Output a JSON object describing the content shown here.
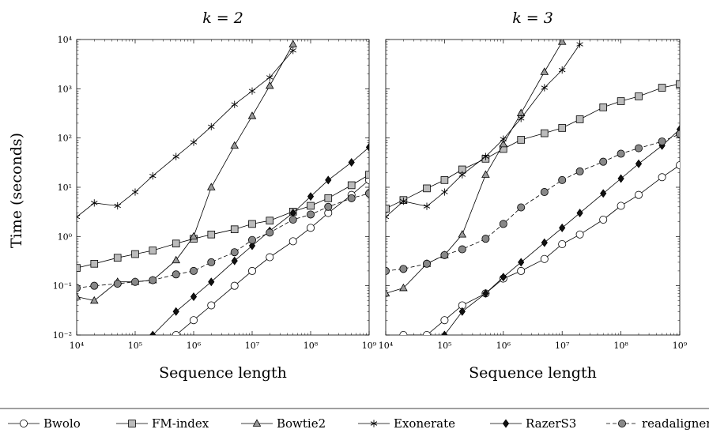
{
  "chart_data": {
    "type": "line",
    "x_scale": "log",
    "y_scale": "log",
    "xlim": [
      10000,
      1000000000
    ],
    "ylim": [
      0.01,
      10000
    ],
    "x_ticks": [
      "10⁴",
      "10⁵",
      "10⁶",
      "10⁷",
      "10⁸",
      "10⁹"
    ],
    "y_ticks": [
      "10⁻²",
      "10⁻¹",
      "10⁰",
      "10¹",
      "10²",
      "10³",
      "10⁴"
    ],
    "xlabel": "Sequence length",
    "ylabel": "Time (seconds)",
    "legend_placement": "bottom",
    "series_styles": [
      {
        "name": "Bwolo",
        "marker": "circle",
        "fill": "#ffffff",
        "dash": false
      },
      {
        "name": "FM-index",
        "marker": "square",
        "fill": "#bbbbbb",
        "dash": false
      },
      {
        "name": "Bowtie2",
        "marker": "triangle",
        "fill": "#999999",
        "dash": false
      },
      {
        "name": "Exonerate",
        "marker": "star",
        "fill": "#000000",
        "dash": false
      },
      {
        "name": "RazerS3",
        "marker": "diamond",
        "fill": "#111111",
        "dash": false
      },
      {
        "name": "readaligner",
        "marker": "circle",
        "fill": "#888888",
        "dash": true
      }
    ],
    "panels": [
      {
        "title": "k = 2",
        "series": [
          {
            "name": "Bwolo",
            "x": [
              500000,
              1000000,
              2000000,
              5000000,
              10000000,
              20000000,
              50000000,
              100000000,
              200000000,
              500000000,
              1000000000
            ],
            "y": [
              0.01,
              0.02,
              0.04,
              0.1,
              0.2,
              0.38,
              0.8,
              1.5,
              3.0,
              7.0,
              14
            ]
          },
          {
            "name": "FM-index",
            "x": [
              10000,
              20000,
              50000,
              100000,
              200000,
              500000,
              1000000,
              2000000,
              5000000,
              10000000,
              20000000,
              50000000,
              100000000,
              200000000,
              500000000,
              1000000000
            ],
            "y": [
              0.23,
              0.28,
              0.37,
              0.44,
              0.52,
              0.72,
              0.9,
              1.1,
              1.4,
              1.8,
              2.1,
              3.2,
              4.2,
              6.0,
              11,
              18
            ]
          },
          {
            "name": "Bowtie2",
            "x": [
              10000,
              20000,
              50000,
              100000,
              200000,
              500000,
              1000000,
              2000000,
              5000000,
              10000000,
              20000000,
              50000000
            ],
            "y": [
              0.06,
              0.05,
              0.12,
              0.12,
              0.13,
              0.33,
              1.0,
              10,
              70,
              280,
              1150,
              8000
            ]
          },
          {
            "name": "Exonerate",
            "x": [
              10000,
              20000,
              50000,
              100000,
              200000,
              500000,
              1000000,
              2000000,
              5000000,
              10000000,
              20000000,
              50000000
            ],
            "y": [
              2.5,
              4.8,
              4.2,
              8.0,
              17,
              42,
              82,
              170,
              480,
              900,
              1700,
              6000
            ]
          },
          {
            "name": "RazerS3",
            "x": [
              200000,
              500000,
              1000000,
              2000000,
              5000000,
              10000000,
              20000000,
              50000000,
              100000000,
              200000000,
              500000000,
              1000000000
            ],
            "y": [
              0.01,
              0.03,
              0.06,
              0.12,
              0.32,
              0.65,
              1.3,
              3.0,
              6.5,
              14,
              32,
              65
            ]
          },
          {
            "name": "readaligner",
            "x": [
              10000,
              20000,
              50000,
              100000,
              200000,
              500000,
              1000000,
              2000000,
              5000000,
              10000000,
              20000000,
              50000000,
              100000000,
              200000000,
              500000000,
              1000000000
            ],
            "y": [
              0.09,
              0.1,
              0.11,
              0.12,
              0.13,
              0.17,
              0.2,
              0.3,
              0.48,
              0.85,
              1.2,
              2.2,
              2.8,
              4.0,
              6.0,
              7.5
            ]
          }
        ]
      },
      {
        "title": "k = 3",
        "series": [
          {
            "name": "Bwolo",
            "x": [
              20000,
              50000,
              100000,
              200000,
              500000,
              1000000,
              2000000,
              5000000,
              10000000,
              20000000,
              50000000,
              100000000,
              200000000,
              500000000,
              1000000000
            ],
            "y": [
              0.01,
              0.01,
              0.02,
              0.04,
              0.07,
              0.14,
              0.2,
              0.35,
              0.7,
              1.1,
              2.2,
              4.2,
              7.0,
              16,
              28
            ]
          },
          {
            "name": "FM-index",
            "x": [
              10000,
              20000,
              50000,
              100000,
              200000,
              500000,
              1000000,
              2000000,
              5000000,
              10000000,
              20000000,
              50000000,
              100000000,
              200000000,
              500000000,
              1000000000
            ],
            "y": [
              3.7,
              5.5,
              9.5,
              14,
              23,
              38,
              60,
              92,
              125,
              160,
              240,
              420,
              560,
              700,
              1050,
              1250
            ]
          },
          {
            "name": "Bowtie2",
            "x": [
              10000,
              20000,
              50000,
              100000,
              200000,
              500000,
              1000000,
              2000000,
              5000000,
              10000000
            ],
            "y": [
              0.07,
              0.09,
              0.28,
              0.42,
              1.1,
              18,
              75,
              320,
              2200,
              9000
            ]
          },
          {
            "name": "Exonerate",
            "x": [
              10000,
              20000,
              50000,
              100000,
              200000,
              500000,
              1000000,
              2000000,
              5000000,
              10000000,
              20000000
            ],
            "y": [
              2.5,
              5.2,
              4.1,
              8.0,
              18,
              42,
              95,
              250,
              1050,
              2400,
              8000
            ]
          },
          {
            "name": "RazerS3",
            "x": [
              100000,
              200000,
              500000,
              1000000,
              2000000,
              5000000,
              10000000,
              20000000,
              50000000,
              100000000,
              200000000,
              500000000,
              1000000000
            ],
            "y": [
              0.01,
              0.03,
              0.07,
              0.15,
              0.3,
              0.75,
              1.5,
              3.0,
              7.5,
              15,
              30,
              70,
              150
            ]
          },
          {
            "name": "readaligner",
            "x": [
              10000,
              20000,
              50000,
              100000,
              200000,
              500000,
              1000000,
              2000000,
              5000000,
              10000000,
              20000000,
              50000000,
              100000000,
              200000000,
              500000000,
              1000000000
            ],
            "y": [
              0.2,
              0.22,
              0.28,
              0.42,
              0.55,
              0.9,
              1.8,
              3.9,
              8.0,
              14,
              21,
              33,
              48,
              62,
              85,
              120
            ]
          }
        ]
      }
    ]
  }
}
